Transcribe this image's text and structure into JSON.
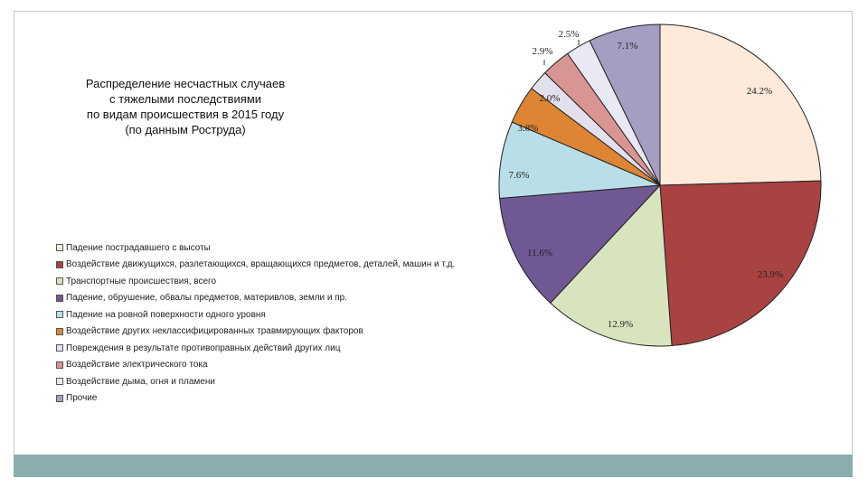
{
  "chart_data": {
    "type": "pie",
    "title": [
      "Распределение несчастных случаев",
      "с тяжелыми последствиями",
      "по видам происшествия в 2015 году",
      "(по данным Роструда)"
    ],
    "legend_position": "left",
    "slices": [
      {
        "name": "Падение пострадавшего с высоты",
        "value": 24.2,
        "label": "24.2%",
        "color": "#fdeadb"
      },
      {
        "name": "Воздействие движущихся, разлетающихся, вращающихся предметов, деталей, машин и т.д.",
        "value": 23.9,
        "label": "23.9%",
        "color": "#a84342"
      },
      {
        "name": "Транспортные происшествия, всего",
        "value": 12.9,
        "label": "12.9%",
        "color": "#d8e4bd"
      },
      {
        "name": "Падение, обрушение, обвалы предметов, материвлов, земли и пр.",
        "value": 11.6,
        "label": "11.6%",
        "color": "#6f5893"
      },
      {
        "name": "Падение на ровной поверхности одного уровня",
        "value": 7.6,
        "label": "7.6%",
        "color": "#b8dfe8"
      },
      {
        "name": "Воздействие других неклассифицированных травмирующих факторов",
        "value": 3.8,
        "label": "3.8%",
        "color": "#dd8535"
      },
      {
        "name": "Повреждения в результате противоправных действий других лиц",
        "value": 2.0,
        "label": "2.0%",
        "color": "#e3e0ed"
      },
      {
        "name": "Воздействие электрического тока",
        "value": 2.9,
        "label": "2.9%",
        "color": "#d99593"
      },
      {
        "name": "Воздействие дыма, огня и пламени",
        "value": 2.5,
        "label": "2.5%",
        "color": "#e9e9f4"
      },
      {
        "name": "Прочие",
        "value": 7.1,
        "label": "7.1%",
        "color": "#a69dc2"
      }
    ]
  }
}
